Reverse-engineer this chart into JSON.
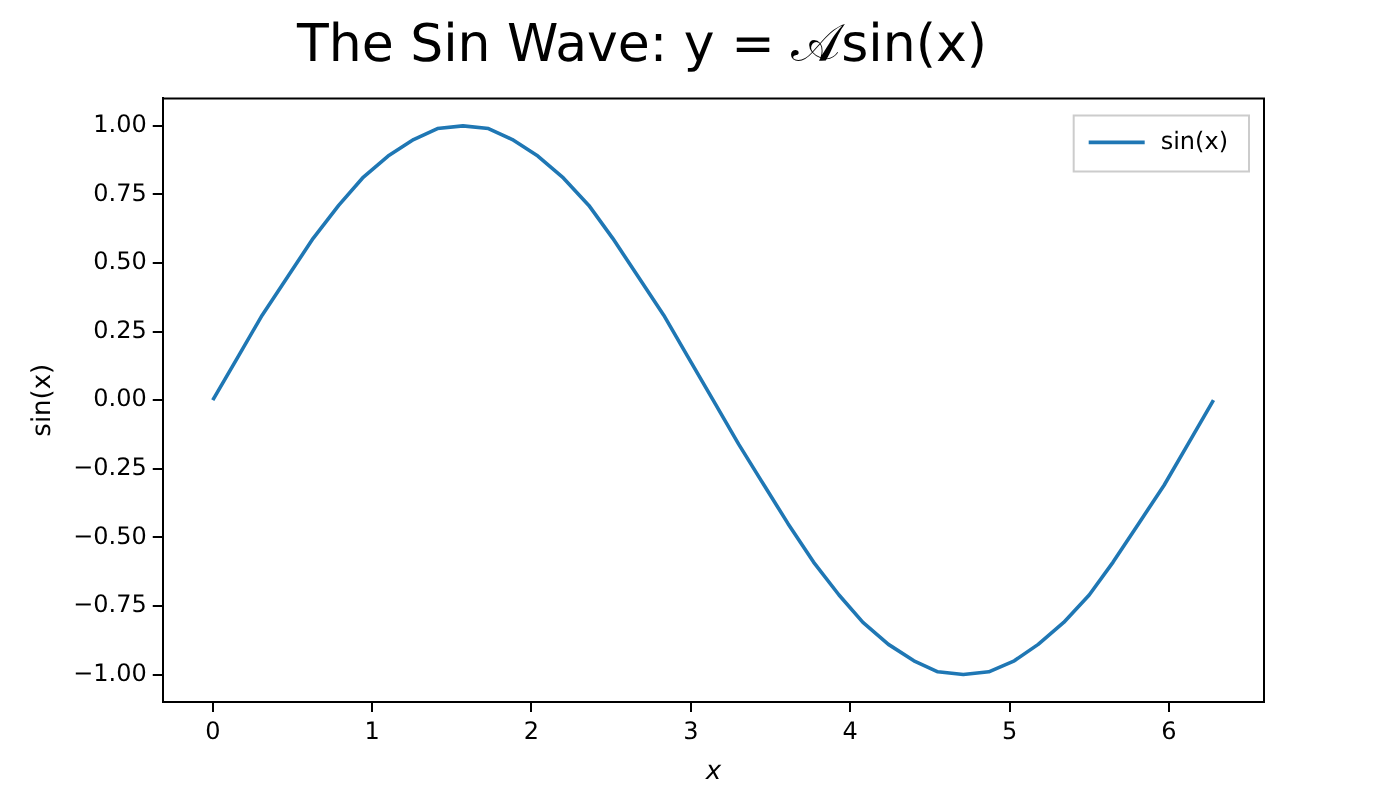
{
  "chart_data": {
    "type": "line",
    "title": "The Sin Wave: y = 𝒜sin(x)",
    "xlabel": "x",
    "ylabel": "sin(x)",
    "xlim": [
      -0.314,
      6.597
    ],
    "xticks": [
      0,
      1,
      2,
      3,
      4,
      5,
      6
    ],
    "ylim": [
      -1.1,
      1.1
    ],
    "yticks": [
      {
        "value": -1,
        "label": "−1.00"
      },
      {
        "value": -0.75,
        "label": "−0.75"
      },
      {
        "value": -0.5,
        "label": "−0.50"
      },
      {
        "value": -0.25,
        "label": "−0.25"
      },
      {
        "value": 0,
        "label": "0.00"
      },
      {
        "value": 0.25,
        "label": "0.25"
      },
      {
        "value": 0.5,
        "label": "0.50"
      },
      {
        "value": 0.75,
        "label": "0.75"
      },
      {
        "value": 1,
        "label": "1.00"
      }
    ],
    "x": [
      0,
      0.16,
      0.31,
      0.47,
      0.63,
      0.79,
      0.94,
      1.1,
      1.26,
      1.41,
      1.57,
      1.73,
      1.88,
      2.04,
      2.2,
      2.36,
      2.51,
      2.67,
      2.83,
      2.98,
      3.14,
      3.3,
      3.46,
      3.61,
      3.77,
      3.93,
      4.08,
      4.24,
      4.4,
      4.55,
      4.71,
      4.87,
      5.03,
      5.18,
      5.34,
      5.5,
      5.65,
      5.81,
      5.97,
      6.12,
      6.28
    ],
    "series": [
      {
        "name": "sin(x)",
        "color": "#1f77b4",
        "values": [
          0,
          0.16,
          0.31,
          0.45,
          0.59,
          0.71,
          0.81,
          0.89,
          0.95,
          0.99,
          1,
          0.99,
          0.95,
          0.89,
          0.81,
          0.71,
          0.59,
          0.45,
          0.31,
          0.16,
          0,
          -0.16,
          -0.31,
          -0.45,
          -0.59,
          -0.71,
          -0.81,
          -0.89,
          -0.95,
          -0.99,
          -1,
          -0.99,
          -0.95,
          -0.89,
          -0.81,
          -0.71,
          -0.59,
          -0.45,
          -0.31,
          -0.16,
          0
        ]
      }
    ],
    "grid": false,
    "legend": "top right",
    "marker": "none",
    "line_style": "solid"
  }
}
